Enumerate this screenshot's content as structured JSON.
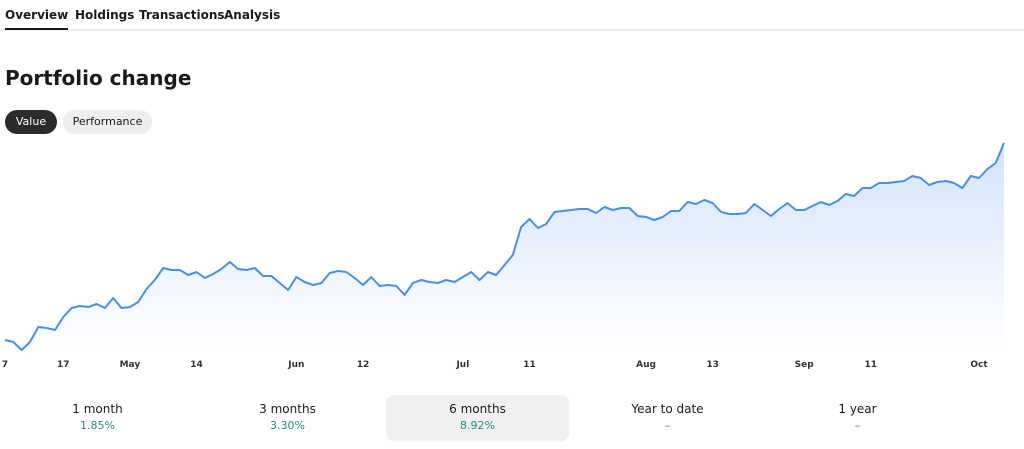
{
  "tabs": [
    "Overview",
    "Holdings",
    "Transactions",
    "Analysis"
  ],
  "title": "Portfolio change",
  "toggle": [
    "Value",
    "Performance"
  ],
  "chart_data": {
    "type": "line",
    "color": "#4a90e2",
    "categories": [
      "7",
      null,
      null,
      null,
      null,
      null,
      null,
      "17",
      null,
      null,
      null,
      null,
      null,
      null,
      null,
      "May",
      null,
      null,
      null,
      null,
      null,
      null,
      null,
      "14",
      null,
      null,
      null,
      null,
      null,
      null,
      null,
      null,
      null,
      null,
      null,
      "Jun",
      null,
      null,
      null,
      null,
      null,
      null,
      null,
      "12",
      null,
      null,
      null,
      null,
      null,
      null,
      null,
      null,
      null,
      null,
      null,
      "Jul",
      null,
      null,
      null,
      null,
      null,
      null,
      null,
      "11",
      null,
      null,
      null,
      null,
      null,
      null,
      null,
      null,
      null,
      null,
      null,
      null,
      null,
      "Aug",
      null,
      null,
      null,
      null,
      null,
      null,
      null,
      "13",
      null,
      null,
      null,
      null,
      null,
      null,
      null,
      null,
      null,
      null,
      "Sep",
      null,
      null,
      null,
      null,
      null,
      null,
      null,
      "11",
      null,
      null,
      null,
      null,
      null,
      null,
      null,
      null,
      null,
      null,
      null,
      null,
      "Oct",
      null,
      null,
      null
    ],
    "values": [
      10,
      8,
      0,
      8,
      23,
      22,
      20,
      33,
      42,
      44,
      43,
      46,
      42,
      52,
      42,
      43,
      48,
      61,
      70,
      82,
      80,
      80,
      75,
      78,
      72,
      76,
      81,
      88,
      81,
      80,
      82,
      74,
      74,
      67,
      60,
      73,
      68,
      65,
      67,
      77,
      79,
      78,
      72,
      65,
      73,
      64,
      65,
      64,
      55,
      67,
      70,
      68,
      67,
      70,
      68,
      73,
      78,
      70,
      78,
      75,
      85,
      95,
      123,
      131,
      122,
      126,
      138,
      139,
      140,
      141,
      141,
      137,
      143,
      140,
      142,
      142,
      134,
      133,
      130,
      133,
      139,
      139,
      148,
      146,
      150,
      147,
      138,
      136,
      136,
      137,
      146,
      140,
      134,
      141,
      147,
      140,
      140,
      144,
      148,
      145,
      149,
      156,
      154,
      162,
      162,
      167,
      167,
      168,
      169,
      174,
      172,
      165,
      168,
      169,
      167,
      162,
      174,
      172,
      181,
      187,
      207
    ],
    "ylim": [
      0,
      210
    ]
  },
  "stats": [
    {
      "period": "1 month",
      "change": "1.85%"
    },
    {
      "period": "3 months",
      "change": "3.30%"
    },
    {
      "period": "6 months",
      "change": "8.92%"
    },
    {
      "period": "Year to date",
      "change": "–"
    },
    {
      "period": "1 year",
      "change": "–"
    }
  ]
}
